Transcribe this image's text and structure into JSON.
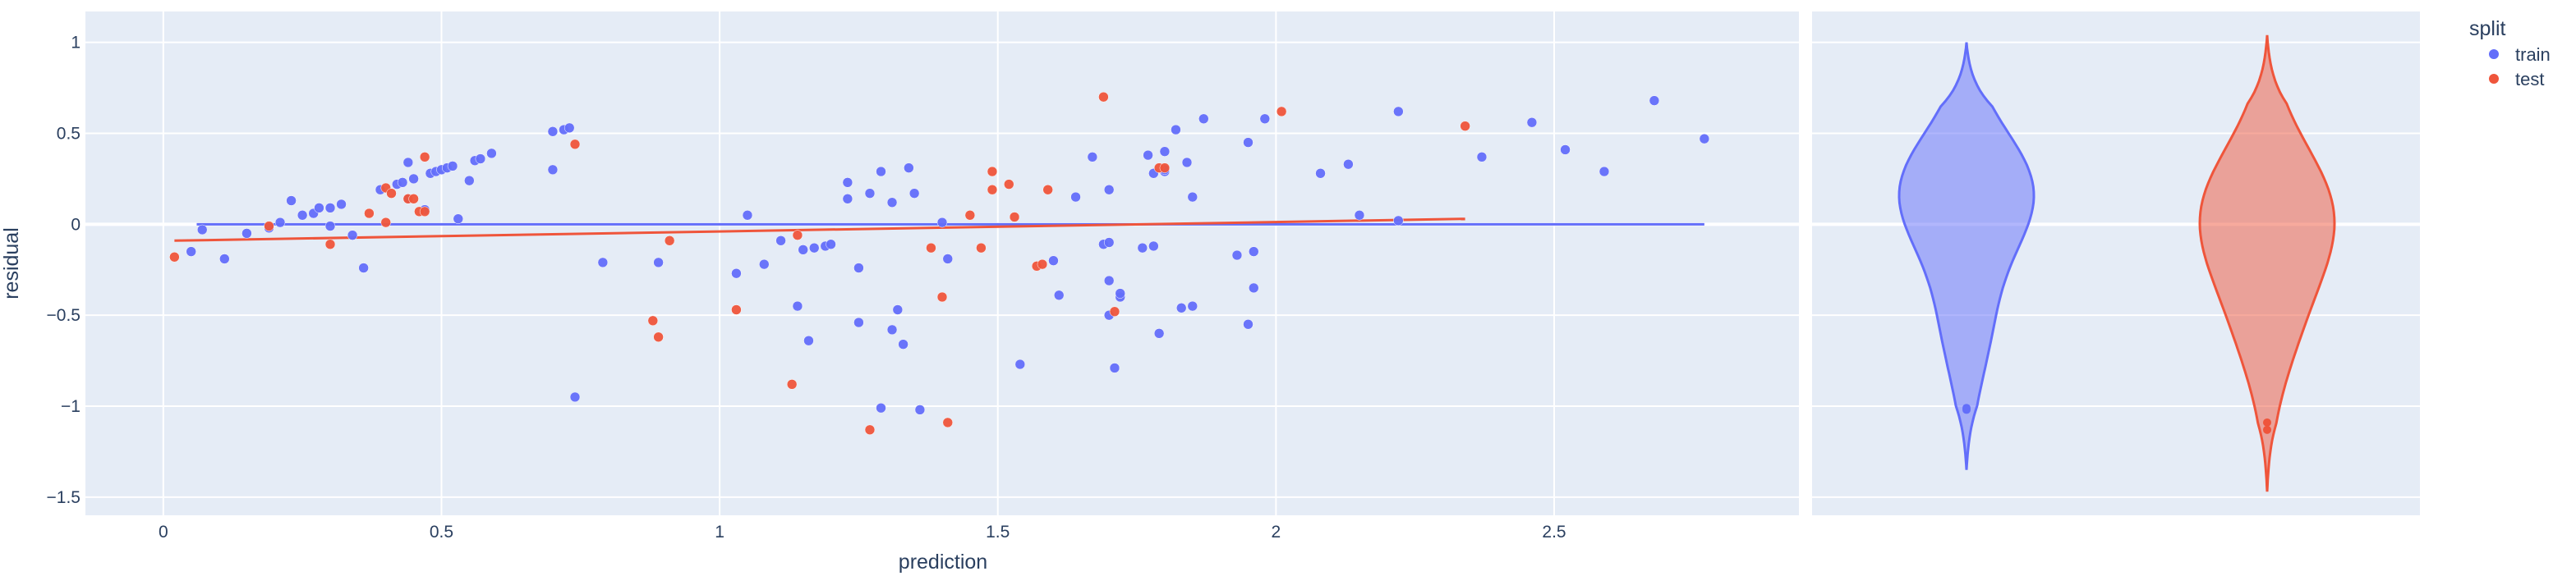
{
  "chart_data": {
    "type": "scatter",
    "xlabel": "prediction",
    "ylabel": "residual",
    "xlim": [
      -0.14,
      2.94
    ],
    "ylim": [
      -1.6,
      1.17
    ],
    "x_ticks": [
      0,
      0.5,
      1,
      1.5,
      2,
      2.5
    ],
    "x_tick_labels": [
      "0",
      "0.5",
      "1",
      "1.5",
      "2",
      "2.5"
    ],
    "y_ticks": [
      1,
      0.5,
      0,
      -0.5,
      -1,
      -1.5
    ],
    "y_tick_labels": [
      "1",
      "0.5",
      "0",
      "−0.5",
      "−1",
      "−1.5"
    ],
    "grid": true,
    "legend": {
      "title": "split",
      "placement": "top-right",
      "items": [
        "train",
        "test"
      ]
    },
    "colors": {
      "train": "#636efa",
      "test": "#ef553b",
      "plot_bg": "#e5ecf6",
      "grid": "#ffffff",
      "text": "#2a3f5f"
    },
    "series": [
      {
        "name": "train",
        "points": [
          [
            0.05,
            -0.15
          ],
          [
            0.07,
            -0.03
          ],
          [
            0.11,
            -0.19
          ],
          [
            0.15,
            -0.05
          ],
          [
            0.19,
            -0.02
          ],
          [
            0.21,
            0.01
          ],
          [
            0.23,
            0.13
          ],
          [
            0.25,
            0.05
          ],
          [
            0.27,
            0.06
          ],
          [
            0.28,
            0.09
          ],
          [
            0.3,
            0.09
          ],
          [
            0.32,
            0.11
          ],
          [
            0.3,
            -0.01
          ],
          [
            0.34,
            -0.06
          ],
          [
            0.36,
            -0.24
          ],
          [
            0.39,
            0.19
          ],
          [
            0.42,
            0.22
          ],
          [
            0.43,
            0.23
          ],
          [
            0.44,
            0.14
          ],
          [
            0.45,
            0.25
          ],
          [
            0.44,
            0.34
          ],
          [
            0.47,
            0.08
          ],
          [
            0.48,
            0.28
          ],
          [
            0.49,
            0.29
          ],
          [
            0.5,
            0.3
          ],
          [
            0.51,
            0.31
          ],
          [
            0.52,
            0.32
          ],
          [
            0.53,
            0.03
          ],
          [
            0.55,
            0.24
          ],
          [
            0.56,
            0.35
          ],
          [
            0.57,
            0.36
          ],
          [
            0.59,
            0.39
          ],
          [
            0.7,
            0.51
          ],
          [
            0.7,
            0.3
          ],
          [
            0.72,
            0.52
          ],
          [
            0.73,
            0.53
          ],
          [
            0.74,
            -0.95
          ],
          [
            0.79,
            -0.21
          ],
          [
            0.89,
            -0.21
          ],
          [
            1.03,
            -0.27
          ],
          [
            1.05,
            0.05
          ],
          [
            1.08,
            -0.22
          ],
          [
            1.11,
            -0.09
          ],
          [
            1.14,
            -0.45
          ],
          [
            1.15,
            -0.14
          ],
          [
            1.16,
            -0.64
          ],
          [
            1.17,
            -0.13
          ],
          [
            1.19,
            -0.12
          ],
          [
            1.2,
            -0.11
          ],
          [
            1.23,
            0.23
          ],
          [
            1.23,
            0.14
          ],
          [
            1.25,
            -0.24
          ],
          [
            1.25,
            -0.54
          ],
          [
            1.27,
            0.17
          ],
          [
            1.29,
            0.29
          ],
          [
            1.29,
            -1.01
          ],
          [
            1.31,
            -0.58
          ],
          [
            1.31,
            0.12
          ],
          [
            1.32,
            -0.47
          ],
          [
            1.33,
            -0.66
          ],
          [
            1.34,
            0.31
          ],
          [
            1.35,
            0.17
          ],
          [
            1.36,
            -1.02
          ],
          [
            1.4,
            0.01
          ],
          [
            1.41,
            -0.19
          ],
          [
            1.54,
            -0.77
          ],
          [
            1.6,
            -0.2
          ],
          [
            1.61,
            -0.39
          ],
          [
            1.64,
            0.15
          ],
          [
            1.67,
            0.37
          ],
          [
            1.69,
            -0.11
          ],
          [
            1.7,
            -0.1
          ],
          [
            1.7,
            -0.31
          ],
          [
            1.7,
            -0.5
          ],
          [
            1.71,
            -0.79
          ],
          [
            1.72,
            -0.4
          ],
          [
            1.72,
            -0.38
          ],
          [
            1.7,
            0.19
          ],
          [
            1.76,
            -0.13
          ],
          [
            1.77,
            0.38
          ],
          [
            1.78,
            -0.12
          ],
          [
            1.78,
            0.28
          ],
          [
            1.79,
            -0.6
          ],
          [
            1.8,
            0.29
          ],
          [
            1.8,
            0.3
          ],
          [
            1.8,
            0.4
          ],
          [
            1.82,
            0.52
          ],
          [
            1.83,
            -0.46
          ],
          [
            1.84,
            0.34
          ],
          [
            1.85,
            0.15
          ],
          [
            1.87,
            0.58
          ],
          [
            1.85,
            -0.45
          ],
          [
            1.93,
            -0.17
          ],
          [
            1.95,
            -0.55
          ],
          [
            1.96,
            -0.15
          ],
          [
            1.96,
            -0.35
          ],
          [
            1.98,
            0.58
          ],
          [
            1.95,
            0.45
          ],
          [
            2.08,
            0.28
          ],
          [
            2.13,
            0.33
          ],
          [
            2.15,
            0.05
          ],
          [
            2.22,
            0.62
          ],
          [
            2.22,
            0.02
          ],
          [
            2.37,
            0.37
          ],
          [
            2.46,
            0.56
          ],
          [
            2.52,
            0.41
          ],
          [
            2.59,
            0.29
          ],
          [
            2.68,
            0.68
          ],
          [
            2.77,
            0.47
          ]
        ]
      },
      {
        "name": "test",
        "points": [
          [
            0.02,
            -0.18
          ],
          [
            0.19,
            -0.01
          ],
          [
            0.3,
            -0.11
          ],
          [
            0.37,
            0.06
          ],
          [
            0.4,
            0.01
          ],
          [
            0.4,
            0.2
          ],
          [
            0.41,
            0.17
          ],
          [
            0.44,
            0.14
          ],
          [
            0.45,
            0.14
          ],
          [
            0.46,
            0.07
          ],
          [
            0.47,
            0.37
          ],
          [
            0.47,
            0.07
          ],
          [
            0.74,
            0.44
          ],
          [
            0.88,
            -0.53
          ],
          [
            0.89,
            -0.62
          ],
          [
            0.91,
            -0.09
          ],
          [
            1.03,
            -0.47
          ],
          [
            1.13,
            -0.88
          ],
          [
            1.14,
            -0.06
          ],
          [
            1.27,
            -1.13
          ],
          [
            1.38,
            -0.13
          ],
          [
            1.4,
            -0.4
          ],
          [
            1.41,
            -1.09
          ],
          [
            1.45,
            0.05
          ],
          [
            1.47,
            -0.13
          ],
          [
            1.49,
            0.19
          ],
          [
            1.49,
            0.29
          ],
          [
            1.52,
            0.22
          ],
          [
            1.53,
            0.04
          ],
          [
            1.57,
            -0.23
          ],
          [
            1.58,
            -0.22
          ],
          [
            1.59,
            0.19
          ],
          [
            1.69,
            0.7
          ],
          [
            1.71,
            -0.48
          ],
          [
            1.79,
            0.31
          ],
          [
            1.8,
            0.31
          ],
          [
            2.01,
            0.62
          ],
          [
            2.34,
            0.54
          ]
        ]
      }
    ],
    "trendlines": [
      {
        "name": "train",
        "x": [
          0.06,
          2.77
        ],
        "y": [
          0.0,
          0.0
        ]
      },
      {
        "name": "test",
        "x": [
          0.02,
          2.34
        ],
        "y": [
          -0.09,
          0.03
        ]
      }
    ],
    "marginal_violin": {
      "axis": "y",
      "groups": [
        {
          "name": "train",
          "range": [
            -1.35,
            1.0
          ],
          "median": 0.02,
          "outliers": [
            -1.01,
            -1.02
          ]
        },
        {
          "name": "test",
          "range": [
            -1.47,
            1.04
          ],
          "median": 0.07,
          "outliers": [
            -1.09,
            -1.13
          ]
        }
      ]
    }
  }
}
